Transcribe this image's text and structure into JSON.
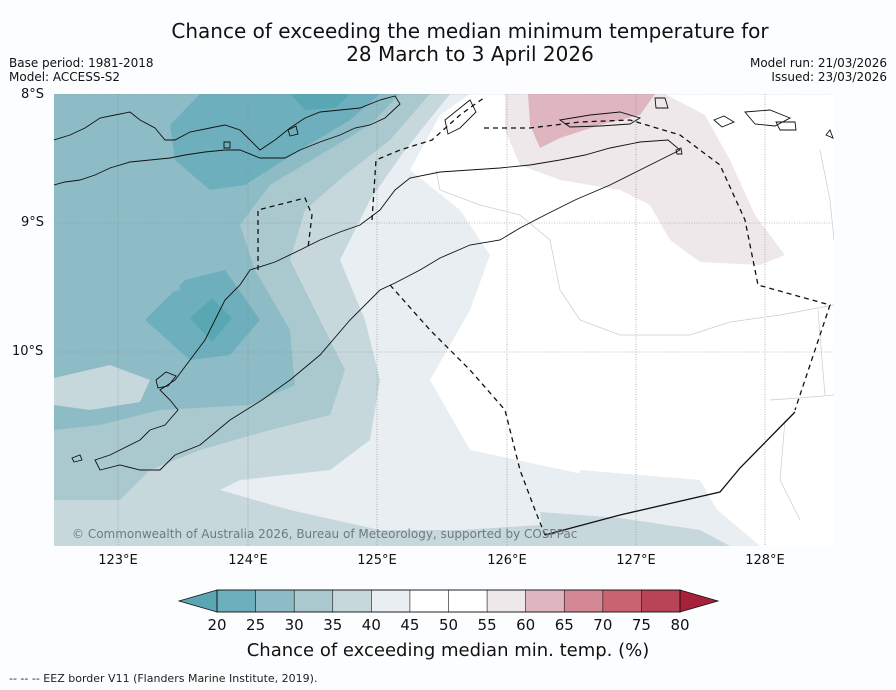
{
  "title": {
    "line1": "Chance of exceeding the median minimum temperature for",
    "line2": "28 March to 3 April 2026"
  },
  "meta_left": {
    "base_period": "Base period: 1981-2018",
    "model": "Model: ACCESS-S2"
  },
  "meta_right": {
    "model_run": "Model run: 21/03/2026",
    "issued": "Issued: 23/03/2026"
  },
  "map": {
    "lat_labels": [
      "8°S",
      "9°S",
      "10°S"
    ],
    "lon_labels": [
      "123°E",
      "124°E",
      "125°E",
      "126°E",
      "127°E",
      "128°E"
    ],
    "copyright": "© Commonwealth of Australia 2026, Bureau of Meteorology, supported by COSPPac"
  },
  "colorbar": {
    "title": "Chance of exceeding median min. temp. (%)",
    "tick_labels": [
      "20",
      "25",
      "30",
      "35",
      "40",
      "45",
      "50",
      "55",
      "60",
      "65",
      "70",
      "75",
      "80"
    ],
    "colors": [
      "#5aa7b4",
      "#6dafbc",
      "#8ebcc6",
      "#aac9cf",
      "#c7d8dc",
      "#e8eef1",
      "#ffffff",
      "#ffffff",
      "#efe8eb",
      "#dfb6c0",
      "#d48896",
      "#c8636f",
      "#b84455",
      "#a9203a"
    ]
  },
  "footnote": "--  --  -- EEZ border V11 (Flanders Marine Institute, 2019)."
}
